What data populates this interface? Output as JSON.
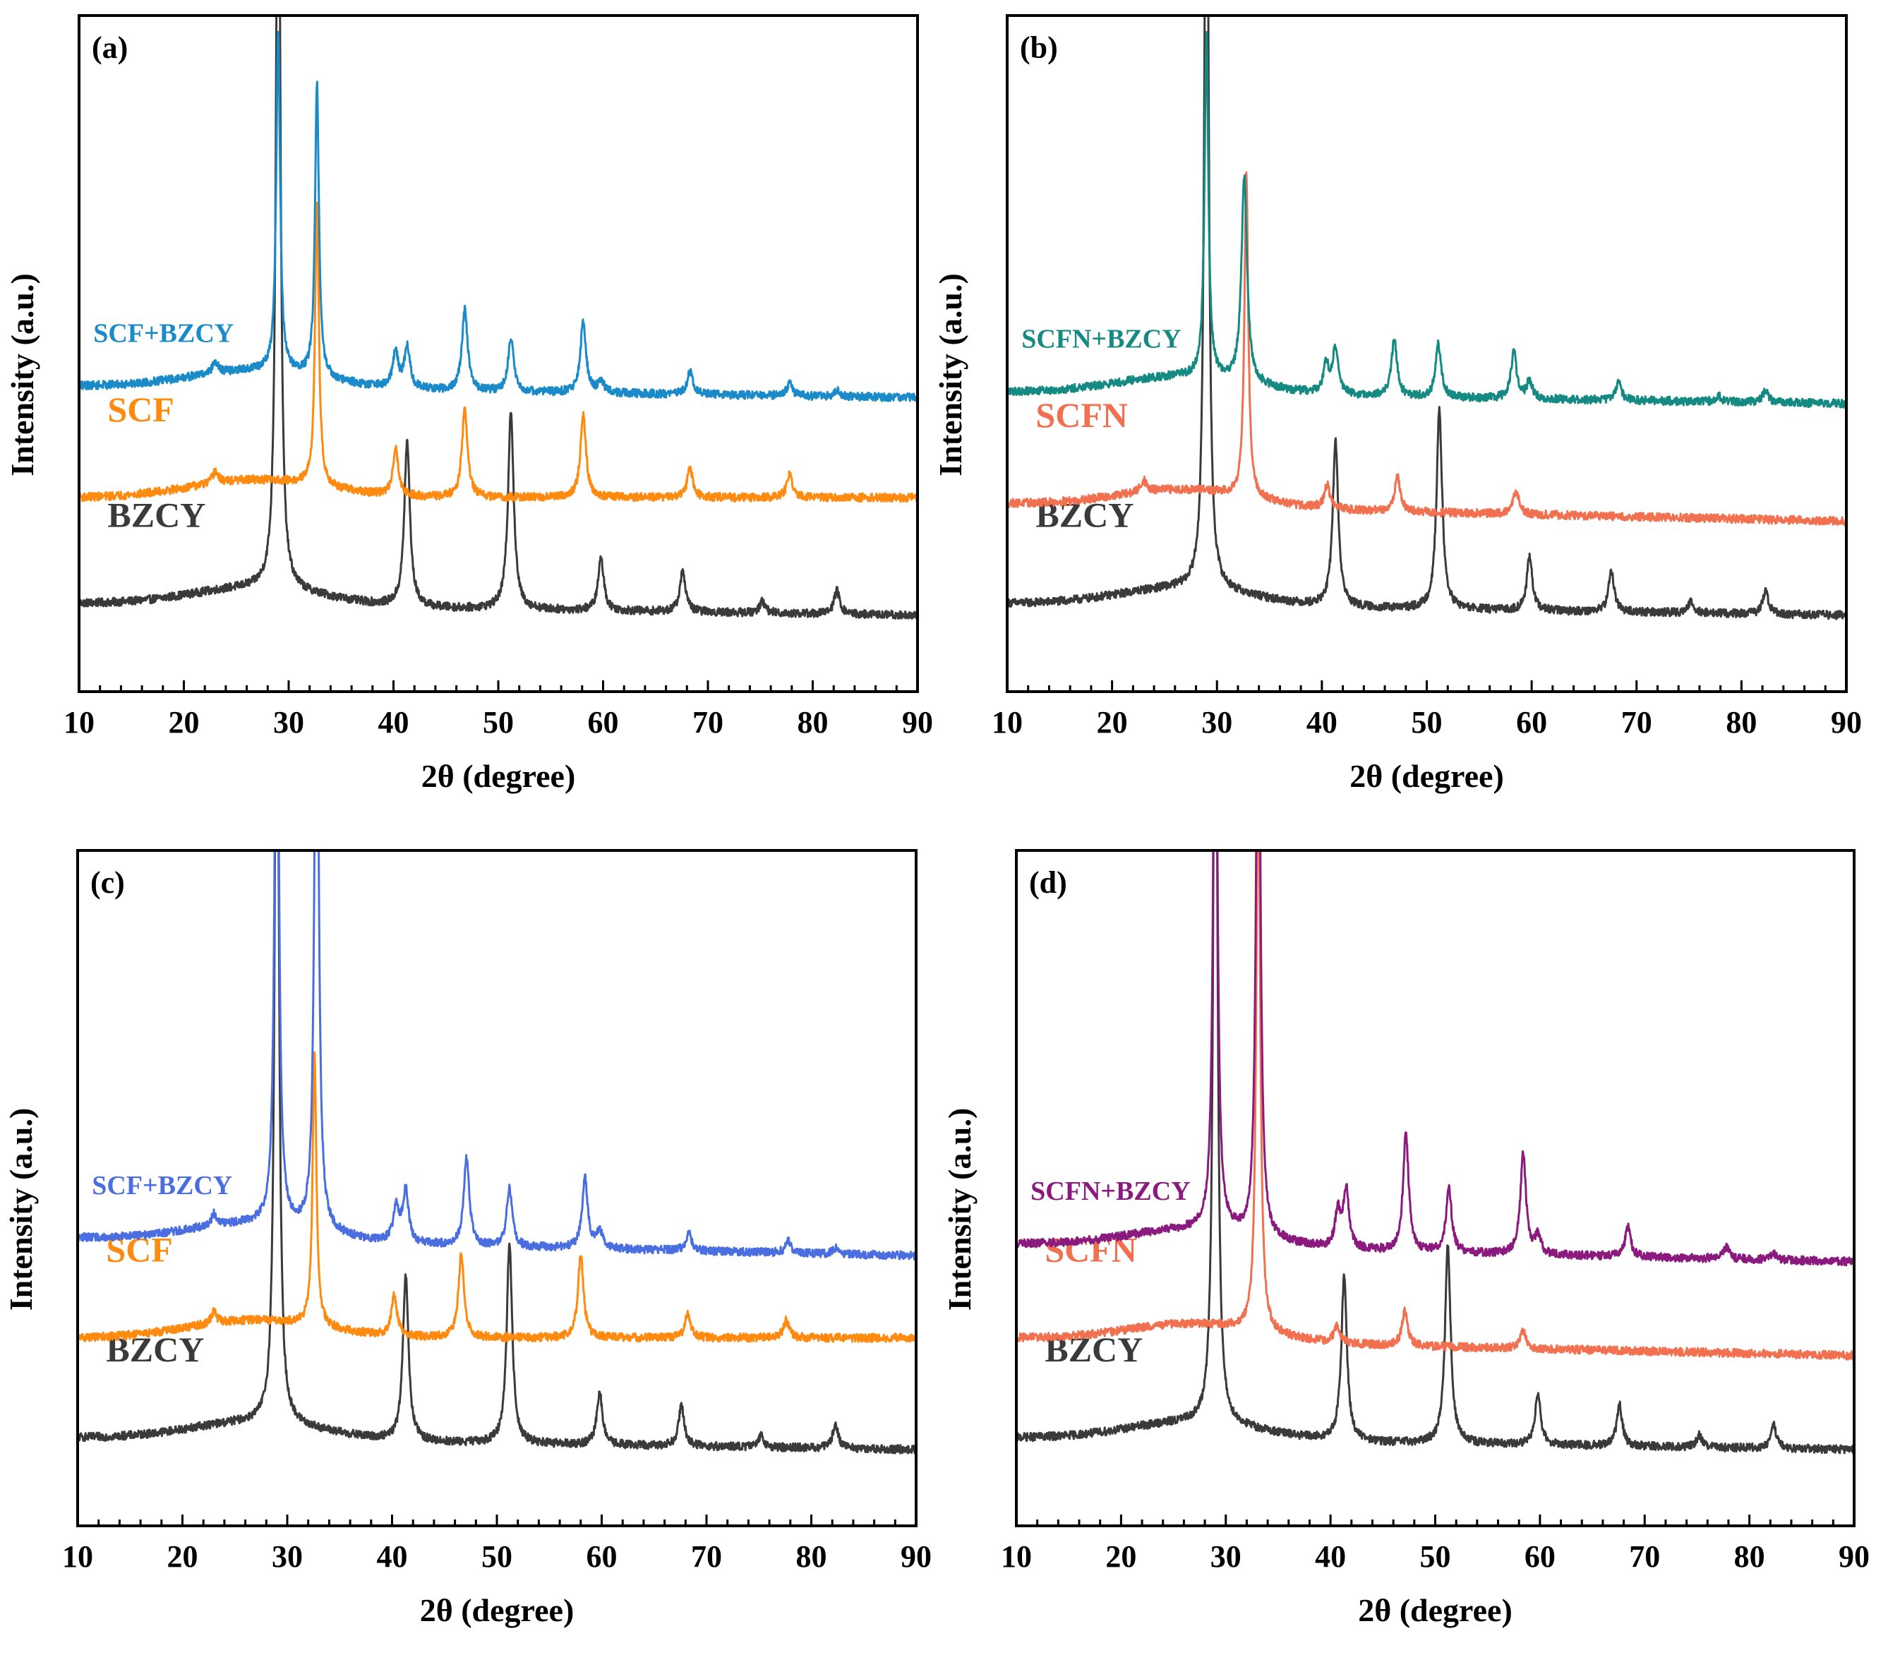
{
  "chart_data": [
    {
      "type": "line",
      "panel_label": "(a)",
      "xlabel": "2θ (degree)",
      "ylabel": "Intensity (a.u.)",
      "xlim": [
        10,
        90
      ],
      "xticks": [
        10,
        20,
        30,
        40,
        50,
        60,
        70,
        80,
        90
      ],
      "stacked": true,
      "series": [
        {
          "name": "BZCY",
          "color": "#3a3a3a",
          "baseline": 0.0,
          "end_drop": 0.02,
          "label_size": "large",
          "peaks": [
            [
              29.0,
              1.6
            ],
            [
              41.3,
              0.28
            ],
            [
              51.2,
              0.34
            ],
            [
              59.8,
              0.09
            ],
            [
              67.6,
              0.07
            ],
            [
              75.2,
              0.02
            ],
            [
              82.3,
              0.04
            ]
          ]
        },
        {
          "name": "SCF",
          "color": "#ff8a10",
          "baseline": 0.18,
          "end_drop": 0.0,
          "label_size": "large",
          "peaks": [
            [
              23.0,
              0.02
            ],
            [
              32.7,
              0.48
            ],
            [
              40.2,
              0.08
            ],
            [
              46.8,
              0.15
            ],
            [
              58.1,
              0.14
            ],
            [
              68.3,
              0.05
            ],
            [
              77.8,
              0.04
            ]
          ]
        },
        {
          "name": "SCF+BZCY",
          "color": "#1a8bc8",
          "baseline": 0.37,
          "end_drop": 0.02,
          "label_size": "small",
          "peaks": [
            [
              23.0,
              0.02
            ],
            [
              29.0,
              0.58
            ],
            [
              32.7,
              0.5
            ],
            [
              40.2,
              0.06
            ],
            [
              41.3,
              0.07
            ],
            [
              46.8,
              0.14
            ],
            [
              51.2,
              0.09
            ],
            [
              58.1,
              0.12
            ],
            [
              59.8,
              0.02
            ],
            [
              68.3,
              0.04
            ],
            [
              77.8,
              0.02
            ],
            [
              82.3,
              0.01
            ]
          ]
        }
      ]
    },
    {
      "type": "line",
      "panel_label": "(b)",
      "xlabel": "2θ (degree)",
      "ylabel": "Intensity (a.u.)",
      "xlim": [
        10,
        90
      ],
      "xticks": [
        10,
        20,
        30,
        40,
        50,
        60,
        70,
        80,
        90
      ],
      "stacked": true,
      "series": [
        {
          "name": "BZCY",
          "color": "#3a3a3a",
          "baseline": 0.0,
          "end_drop": 0.02,
          "label_size": "large",
          "peaks": [
            [
              29.0,
              1.6
            ],
            [
              41.3,
              0.28
            ],
            [
              51.2,
              0.34
            ],
            [
              59.8,
              0.09
            ],
            [
              67.6,
              0.07
            ],
            [
              75.2,
              0.02
            ],
            [
              82.3,
              0.04
            ]
          ]
        },
        {
          "name": "SCFN",
          "color": "#f07050",
          "baseline": 0.17,
          "end_drop": 0.03,
          "label_size": "large",
          "peaks": [
            [
              23.0,
              0.02
            ],
            [
              32.8,
              0.55
            ],
            [
              40.5,
              0.04
            ],
            [
              47.2,
              0.06
            ],
            [
              58.5,
              0.04
            ]
          ]
        },
        {
          "name": "SCFN+BZCY",
          "color": "#158a82",
          "baseline": 0.36,
          "end_drop": 0.02,
          "label_size": "small",
          "peaks": [
            [
              29.0,
              0.58
            ],
            [
              32.6,
              0.35
            ],
            [
              40.4,
              0.05
            ],
            [
              41.3,
              0.08
            ],
            [
              46.9,
              0.1
            ],
            [
              51.1,
              0.09
            ],
            [
              58.3,
              0.08
            ],
            [
              59.8,
              0.03
            ],
            [
              68.3,
              0.03
            ],
            [
              77.8,
              0.01
            ],
            [
              82.3,
              0.02
            ]
          ]
        }
      ]
    },
    {
      "type": "line",
      "panel_label": "(c)",
      "xlabel": "2θ (degree)",
      "ylabel": "Intensity (a.u.)",
      "xlim": [
        10,
        90
      ],
      "xticks": [
        10,
        20,
        30,
        40,
        50,
        60,
        70,
        80,
        90
      ],
      "stacked": true,
      "series": [
        {
          "name": "BZCY",
          "color": "#3a3a3a",
          "baseline": 0.0,
          "end_drop": 0.02,
          "label_size": "large",
          "peaks": [
            [
              29.0,
              1.6
            ],
            [
              41.3,
              0.28
            ],
            [
              51.2,
              0.34
            ],
            [
              59.8,
              0.09
            ],
            [
              67.6,
              0.07
            ],
            [
              75.2,
              0.02
            ],
            [
              82.3,
              0.04
            ]
          ]
        },
        {
          "name": "SCF",
          "color": "#ff8a10",
          "baseline": 0.17,
          "end_drop": 0.0,
          "label_size": "large",
          "peaks": [
            [
              23.0,
              0.02
            ],
            [
              32.6,
              0.46
            ],
            [
              40.2,
              0.07
            ],
            [
              46.6,
              0.14
            ],
            [
              58.0,
              0.14
            ],
            [
              68.2,
              0.04
            ],
            [
              77.6,
              0.03
            ]
          ]
        },
        {
          "name": "SCF+BZCY",
          "color": "#4a6ee0",
          "baseline": 0.34,
          "end_drop": 0.03,
          "label_size": "small",
          "peaks": [
            [
              23.0,
              0.02
            ],
            [
              29.0,
              1.2
            ],
            [
              32.8,
              1.2
            ],
            [
              40.4,
              0.06
            ],
            [
              41.3,
              0.09
            ],
            [
              47.1,
              0.15
            ],
            [
              51.2,
              0.1
            ],
            [
              58.4,
              0.12
            ],
            [
              59.8,
              0.03
            ],
            [
              68.3,
              0.03
            ],
            [
              77.8,
              0.02
            ],
            [
              82.3,
              0.01
            ]
          ]
        }
      ]
    },
    {
      "type": "line",
      "panel_label": "(d)",
      "xlabel": "2θ (degree)",
      "ylabel": "Intensity (a.u.)",
      "xlim": [
        10,
        90
      ],
      "xticks": [
        10,
        20,
        30,
        40,
        50,
        60,
        70,
        80,
        90
      ],
      "stacked": true,
      "series": [
        {
          "name": "BZCY",
          "color": "#3a3a3a",
          "baseline": 0.0,
          "end_drop": 0.02,
          "label_size": "large",
          "peaks": [
            [
              29.0,
              1.6
            ],
            [
              41.3,
              0.28
            ],
            [
              51.2,
              0.34
            ],
            [
              59.8,
              0.09
            ],
            [
              67.6,
              0.07
            ],
            [
              75.2,
              0.02
            ],
            [
              82.3,
              0.04
            ]
          ]
        },
        {
          "name": "SCFN",
          "color": "#f07050",
          "baseline": 0.17,
          "end_drop": 0.03,
          "label_size": "large",
          "peaks": [
            [
              33.1,
              1.0
            ],
            [
              40.6,
              0.03
            ],
            [
              47.1,
              0.06
            ],
            [
              58.4,
              0.03
            ]
          ]
        },
        {
          "name": "SCFN+BZCY",
          "color": "#8b1a7e",
          "baseline": 0.33,
          "end_drop": 0.03,
          "label_size": "small",
          "peaks": [
            [
              29.0,
              1.2
            ],
            [
              33.1,
              1.2
            ],
            [
              40.7,
              0.06
            ],
            [
              41.5,
              0.1
            ],
            [
              47.2,
              0.2
            ],
            [
              51.3,
              0.11
            ],
            [
              58.4,
              0.17
            ],
            [
              59.8,
              0.03
            ],
            [
              68.4,
              0.05
            ],
            [
              77.8,
              0.02
            ],
            [
              82.3,
              0.01
            ]
          ]
        }
      ]
    }
  ]
}
